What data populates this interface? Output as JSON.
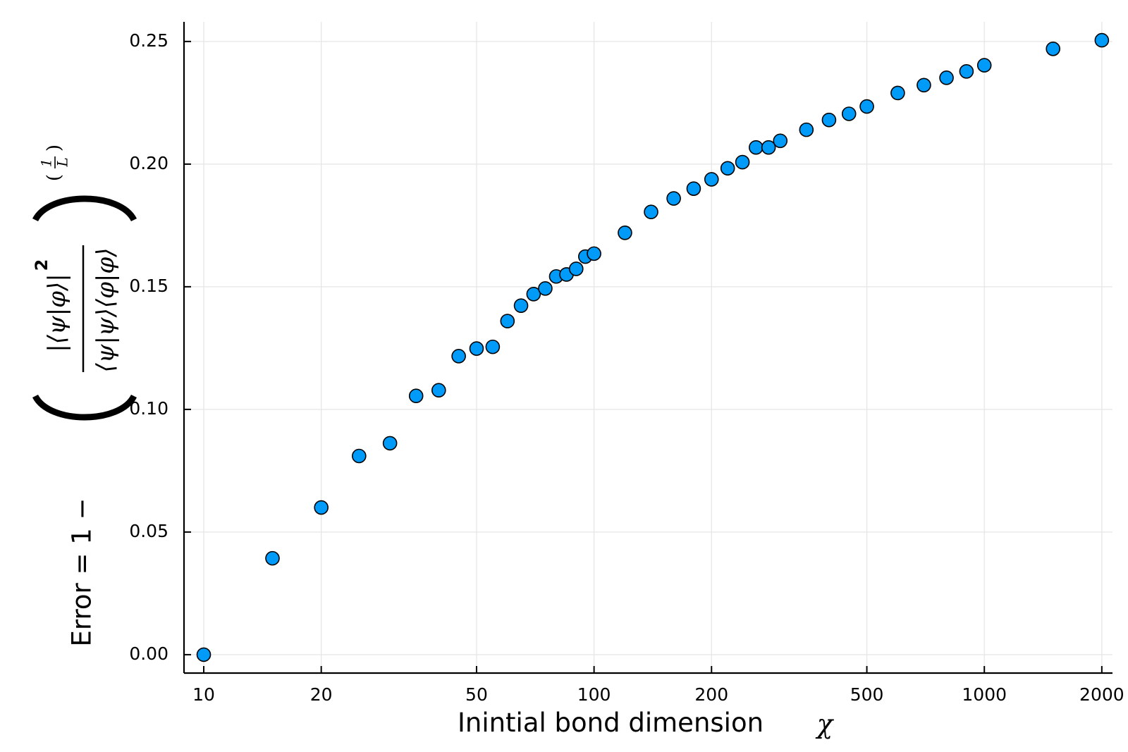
{
  "chart_data": {
    "type": "scatter",
    "title": "",
    "xlabel": "Inintial bond dimension",
    "xlabel_symbol": "χ",
    "ylabel_prefix": "Error = 1 −",
    "ylabel_formula": {
      "numerator": "|⟨ψ|φ⟩|",
      "numerator_power": "2",
      "denominator": "⟨ψ|ψ⟩⟨φ|φ⟩",
      "exponent_num": "1",
      "exponent_den": "L"
    },
    "xscale": "log",
    "xlim": [
      8.9,
      2130
    ],
    "ylim": [
      -0.0075,
      0.258
    ],
    "xticks": [
      10,
      20,
      50,
      100,
      200,
      500,
      1000,
      2000
    ],
    "xtick_labels": [
      "10",
      "20",
      "50",
      "100",
      "200",
      "500",
      "1000",
      "2000"
    ],
    "yticks": [
      0,
      0.05,
      0.1,
      0.15,
      0.2,
      0.25
    ],
    "ytick_labels": [
      "0.00",
      "0.05",
      "0.10",
      "0.15",
      "0.20",
      "0.25"
    ],
    "grid": true,
    "legend": "none",
    "marker_color": "#009af9",
    "series": [
      {
        "x": [
          10,
          15,
          20,
          25,
          30,
          35,
          40,
          45,
          50,
          55,
          60,
          65,
          70,
          75,
          80,
          85,
          90,
          95,
          100,
          120,
          140,
          160,
          180,
          200,
          220,
          240,
          260,
          280,
          300,
          350,
          400,
          450,
          500,
          600,
          700,
          800,
          900,
          1000,
          1500,
          2000
        ],
        "y": [
          0.0,
          0.0393,
          0.06,
          0.081,
          0.0862,
          0.1055,
          0.1078,
          0.1217,
          0.1248,
          0.1255,
          0.136,
          0.1423,
          0.147,
          0.1493,
          0.1542,
          0.155,
          0.1573,
          0.1623,
          0.1635,
          0.172,
          0.1805,
          0.186,
          0.19,
          0.1938,
          0.1983,
          0.2008,
          0.2068,
          0.2068,
          0.2095,
          0.214,
          0.218,
          0.2205,
          0.2235,
          0.229,
          0.2322,
          0.2352,
          0.2378,
          0.2403,
          0.247,
          0.2505
        ]
      }
    ]
  }
}
